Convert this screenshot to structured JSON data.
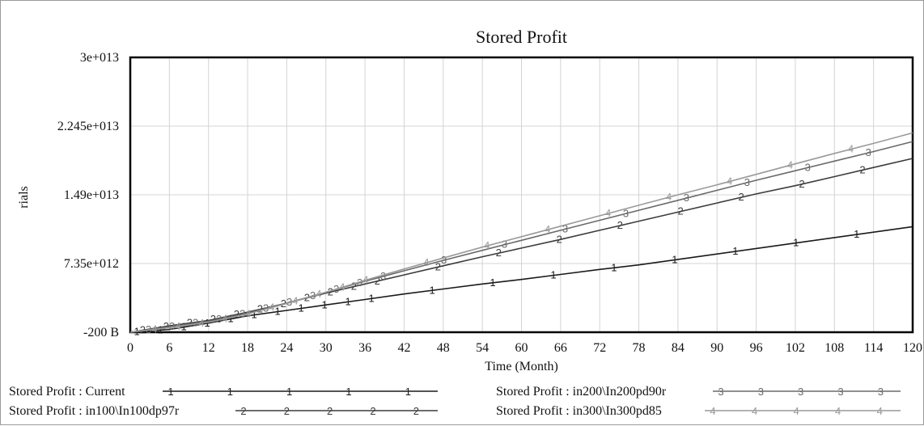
{
  "chart_data": {
    "type": "line",
    "title": "Stored Profit",
    "xlabel": "Time (Month)",
    "ylabel": "rials",
    "xlim": [
      0,
      120
    ],
    "ylim": [
      -200000000000,
      30000000000000
    ],
    "x_ticks": [
      "0",
      "6",
      "12",
      "18",
      "24",
      "30",
      "36",
      "42",
      "48",
      "54",
      "60",
      "66",
      "72",
      "78",
      "84",
      "90",
      "96",
      "102",
      "108",
      "114",
      "120"
    ],
    "y_ticks": [
      {
        "value": -200000000000,
        "label": "-200 B"
      },
      {
        "value": 7350000000000,
        "label": "7.35e+012"
      },
      {
        "value": 14900000000000,
        "label": "1.49e+013"
      },
      {
        "value": 22450000000000,
        "label": "2.245e+013"
      },
      {
        "value": 30000000000000,
        "label": "3e+013"
      }
    ],
    "grid": true,
    "legend_position": "bottom",
    "series": [
      {
        "name": "Stored Profit : Current",
        "marker": "1",
        "color": "#1a1a1a",
        "x": [
          0,
          6,
          12,
          18,
          24,
          30,
          36,
          42,
          48,
          54,
          60,
          66,
          72,
          78,
          84,
          90,
          96,
          102,
          108,
          114,
          120
        ],
        "values": [
          -200000000000,
          100000000000,
          800000000000,
          1600000000000,
          2200000000000,
          2800000000000,
          3400000000000,
          4000000000000,
          4550000000000,
          5100000000000,
          5600000000000,
          6150000000000,
          6700000000000,
          7200000000000,
          7800000000000,
          8400000000000,
          9000000000000,
          9600000000000,
          10200000000000,
          10800000000000,
          11400000000000
        ]
      },
      {
        "name": "Stored Profit : in100\\In100dp97r",
        "marker": "2",
        "color": "#3c3c3c",
        "x": [
          0,
          6,
          12,
          18,
          24,
          30,
          36,
          42,
          48,
          54,
          60,
          66,
          72,
          78,
          84,
          90,
          96,
          102,
          108,
          114,
          120
        ],
        "values": [
          -200000000000,
          500000000000,
          1100000000000,
          2000000000000,
          3000000000000,
          4100000000000,
          5100000000000,
          6100000000000,
          7100000000000,
          8100000000000,
          9050000000000,
          10000000000000,
          11000000000000,
          12000000000000,
          13000000000000,
          14000000000000,
          15000000000000,
          15900000000000,
          16900000000000,
          17900000000000,
          18900000000000
        ]
      },
      {
        "name": "Stored Profit : in200\\In200pd90r",
        "marker": "3",
        "color": "#6a6a6a",
        "x": [
          0,
          6,
          12,
          18,
          24,
          30,
          36,
          42,
          48,
          54,
          60,
          66,
          72,
          78,
          84,
          90,
          96,
          102,
          108,
          114,
          120
        ],
        "values": [
          -200000000000,
          400000000000,
          1000000000000,
          1900000000000,
          3000000000000,
          4200000000000,
          5400000000000,
          6550000000000,
          7700000000000,
          8800000000000,
          9900000000000,
          11000000000000,
          12100000000000,
          13200000000000,
          14300000000000,
          15400000000000,
          16500000000000,
          17550000000000,
          18600000000000,
          19650000000000,
          20750000000000
        ]
      },
      {
        "name": "Stored Profit : in300\\In300pd85",
        "marker": "4",
        "color": "#9a9a9a",
        "x": [
          0,
          6,
          12,
          18,
          24,
          30,
          36,
          42,
          48,
          54,
          60,
          66,
          72,
          78,
          84,
          90,
          96,
          102,
          108,
          114,
          120
        ],
        "values": [
          -200000000000,
          300000000000,
          900000000000,
          1800000000000,
          2950000000000,
          4200000000000,
          5500000000000,
          6750000000000,
          7950000000000,
          9150000000000,
          10300000000000,
          11450000000000,
          12600000000000,
          13750000000000,
          14900000000000,
          16000000000000,
          17150000000000,
          18300000000000,
          19450000000000,
          20550000000000,
          21700000000000
        ]
      }
    ]
  }
}
